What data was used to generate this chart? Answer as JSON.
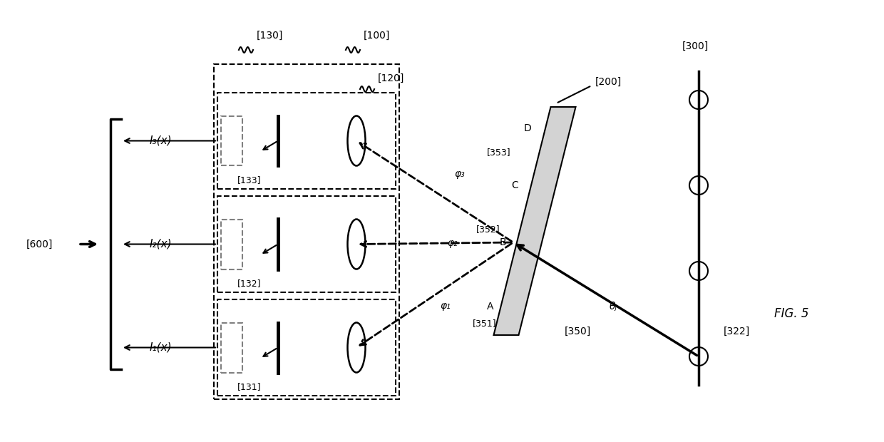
{
  "fig_width": 12.4,
  "fig_height": 6.2,
  "dpi": 100,
  "bg_color": "#ffffff",
  "title": "FIG. 5",
  "labels": {
    "100": "[100]",
    "120": "[120]",
    "130": "[130]",
    "131": "[131]",
    "132": "[132]",
    "133": "[133]",
    "200": "[200]",
    "300": "[300]",
    "322": "[322]",
    "350": "[350]",
    "351": "[351]",
    "352": "[352]",
    "353": "[353]",
    "600": "[600]",
    "I1": "I₁(x)",
    "I2": "I₂(x)",
    "I3": "I₃(x)",
    "phi1": "φ₁",
    "phi2": "φ₂",
    "phi3": "φ₃",
    "theta": "θⱼ",
    "A": "A",
    "B": "B",
    "C": "C",
    "D": "D"
  }
}
